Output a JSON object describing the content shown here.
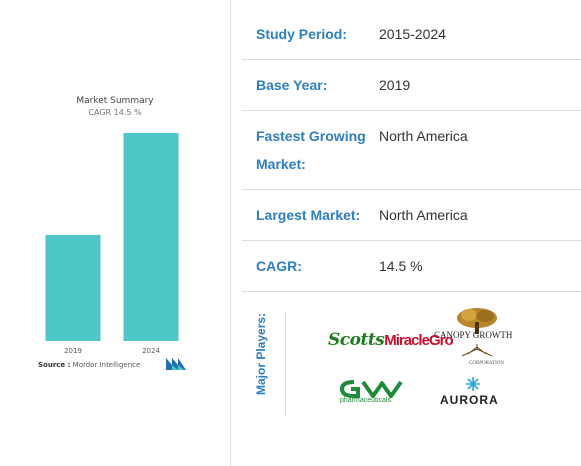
{
  "chart_data": {
    "type": "bar",
    "title": "Market Summary",
    "subtitle": "CAGR 14.5 %",
    "categories": [
      "2019",
      "2024"
    ],
    "values": [
      1.0,
      1.96
    ],
    "bar_color": "#4fc6c8",
    "grid": false
  },
  "source": {
    "label": "Source :",
    "value": "Mordor Intelligence"
  },
  "info": {
    "rows": [
      {
        "key": "Study Period:",
        "value": "2015-2024"
      },
      {
        "key": "Base Year:",
        "value": "2019"
      },
      {
        "key": "Fastest Growing",
        "key2": "Market:",
        "value": "North America"
      },
      {
        "key": "Largest Market:",
        "value": "North America"
      },
      {
        "key": "CAGR:",
        "value": "14.5 %"
      }
    ]
  },
  "players": {
    "label": "Major Players:",
    "scotts": {
      "part1": "Scotts",
      "part2": "MiracleGro"
    },
    "canopy": {
      "name": "CANOPY GROWTH",
      "corp": "CORPORATION"
    },
    "gw": {
      "logo": "GW",
      "sub": "pharmaceuticals"
    },
    "aurora": "AURORA"
  },
  "colors": {
    "accent": "#2e7ec1",
    "bar": "#4fc6c8"
  }
}
